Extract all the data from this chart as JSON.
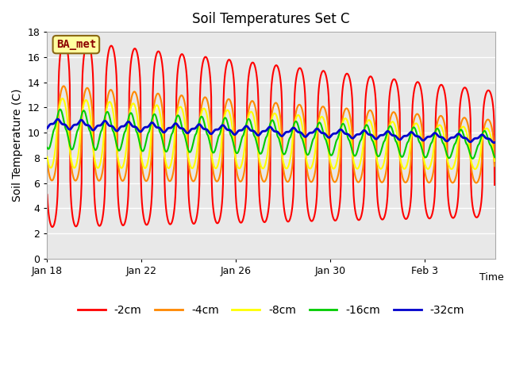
{
  "title": "Soil Temperatures Set C",
  "xlabel": "Time",
  "ylabel": "Soil Temperature (C)",
  "ylim": [
    0,
    18
  ],
  "annotation": "BA_met",
  "background_color": "#ffffff",
  "plot_bg_color": "#e8e8e8",
  "grid_color": "#ffffff",
  "colors": {
    "-2cm": "#ff0000",
    "-4cm": "#ff8800",
    "-8cm": "#ffff00",
    "-16cm": "#00cc00",
    "-32cm": "#0000cc"
  },
  "legend_labels": [
    "-2cm",
    "-4cm",
    "-8cm",
    "-16cm",
    "-32cm"
  ],
  "xtick_labels": [
    "Jan 18",
    "Jan 22",
    "Jan 26",
    "Jan 30",
    "Feb 3"
  ],
  "ytick_positions": [
    0,
    2,
    4,
    6,
    8,
    10,
    12,
    14,
    16,
    18
  ]
}
